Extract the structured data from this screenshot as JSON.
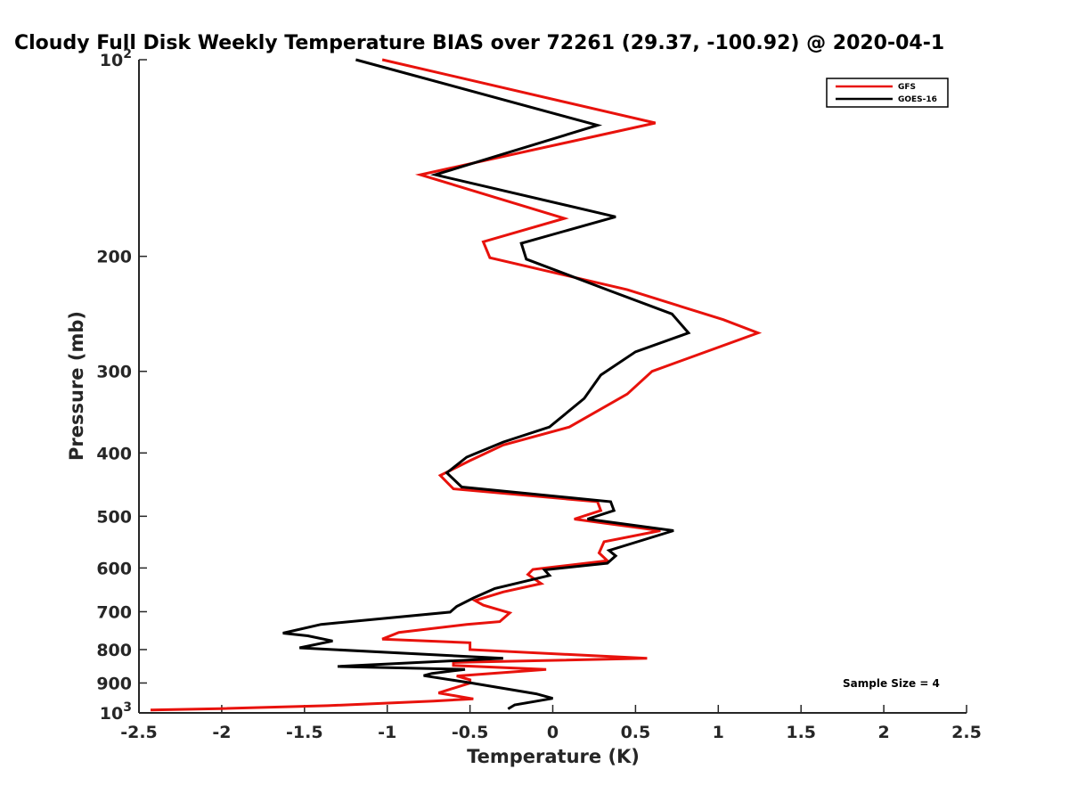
{
  "chart_data": {
    "type": "line",
    "title": "Cloudy Full Disk Weekly Temperature BIAS over 72261 (29.37, -100.92) @ 2020-04-1",
    "xlabel": "Temperature (K)",
    "ylabel": "Pressure (mb)",
    "xlim": [
      -2.5,
      2.5
    ],
    "ylim": [
      100,
      1000
    ],
    "y_scale": "log",
    "y_reversed": true,
    "x_ticks": [
      {
        "value": -2.5,
        "label": "-2.5"
      },
      {
        "value": -2,
        "label": "-2"
      },
      {
        "value": -1.5,
        "label": "-1.5"
      },
      {
        "value": -1,
        "label": "-1"
      },
      {
        "value": -0.5,
        "label": "-0.5"
      },
      {
        "value": 0,
        "label": "0"
      },
      {
        "value": 0.5,
        "label": "0.5"
      },
      {
        "value": 1,
        "label": "1"
      },
      {
        "value": 1.5,
        "label": "1.5"
      },
      {
        "value": 2,
        "label": "2"
      },
      {
        "value": 2.5,
        "label": "2.5"
      }
    ],
    "y_ticks": [
      {
        "value": 100,
        "base": "10",
        "exp": "2"
      },
      {
        "value": 200,
        "label": "200"
      },
      {
        "value": 300,
        "label": "300"
      },
      {
        "value": 400,
        "label": "400"
      },
      {
        "value": 500,
        "label": "500"
      },
      {
        "value": 600,
        "label": "600"
      },
      {
        "value": 700,
        "label": "700"
      },
      {
        "value": 800,
        "label": "800"
      },
      {
        "value": 900,
        "label": "900"
      },
      {
        "value": 1000,
        "base": "10",
        "exp": "3"
      }
    ],
    "grid": false,
    "legend": "top-right",
    "annotation": "Sample Size = 4",
    "series": [
      {
        "name": "GFS",
        "color": "#e8120c",
        "points": [
          [
            -1.03,
            100
          ],
          [
            0.62,
            125
          ],
          [
            -0.8,
            150
          ],
          [
            0.07,
            175
          ],
          [
            -0.42,
            190
          ],
          [
            -0.38,
            201
          ],
          [
            0.45,
            225
          ],
          [
            1.03,
            250
          ],
          [
            1.24,
            262
          ],
          [
            0.6,
            300
          ],
          [
            0.45,
            325
          ],
          [
            0.1,
            365
          ],
          [
            -0.3,
            389
          ],
          [
            -0.5,
            411
          ],
          [
            -0.68,
            433
          ],
          [
            -0.6,
            454
          ],
          [
            0.27,
            475
          ],
          [
            0.29,
            490
          ],
          [
            0.13,
            505
          ],
          [
            0.65,
            526
          ],
          [
            0.31,
            547
          ],
          [
            0.28,
            569
          ],
          [
            0.33,
            585
          ],
          [
            -0.12,
            603
          ],
          [
            -0.15,
            614
          ],
          [
            -0.07,
            634
          ],
          [
            -0.3,
            653
          ],
          [
            -0.47,
            673
          ],
          [
            -0.42,
            684
          ],
          [
            -0.26,
            703
          ],
          [
            -0.32,
            725
          ],
          [
            -0.52,
            732
          ],
          [
            -0.93,
            753
          ],
          [
            -1.03,
            771
          ],
          [
            -0.5,
            781
          ],
          [
            -0.5,
            800
          ],
          [
            0.57,
            825
          ],
          [
            -0.6,
            837
          ],
          [
            -0.6,
            846
          ],
          [
            -0.04,
            858
          ],
          [
            -0.58,
            878
          ],
          [
            -0.5,
            890
          ],
          [
            -0.5,
            900
          ],
          [
            -0.69,
            932
          ],
          [
            -0.48,
            952
          ],
          [
            -0.72,
            959
          ],
          [
            -1.36,
            975
          ],
          [
            -2.01,
            985
          ],
          [
            -2.43,
            990
          ]
        ]
      },
      {
        "name": "GOES-16",
        "color": "#000000",
        "points": [
          [
            -1.19,
            100
          ],
          [
            0.27,
            126
          ],
          [
            -0.71,
            150
          ],
          [
            0.38,
            174
          ],
          [
            -0.19,
            191
          ],
          [
            -0.16,
            202
          ],
          [
            0.35,
            226
          ],
          [
            0.72,
            245
          ],
          [
            0.82,
            262
          ],
          [
            0.5,
            280
          ],
          [
            0.29,
            304
          ],
          [
            0.19,
            330
          ],
          [
            -0.02,
            365
          ],
          [
            -0.3,
            385
          ],
          [
            -0.52,
            406
          ],
          [
            -0.64,
            429
          ],
          [
            -0.55,
            451
          ],
          [
            0.35,
            475
          ],
          [
            0.37,
            490
          ],
          [
            0.21,
            505
          ],
          [
            0.73,
            526
          ],
          [
            0.34,
            564
          ],
          [
            0.38,
            575
          ],
          [
            0.33,
            590
          ],
          [
            -0.05,
            604
          ],
          [
            -0.02,
            616
          ],
          [
            -0.35,
            645
          ],
          [
            -0.48,
            667
          ],
          [
            -0.58,
            687
          ],
          [
            -0.62,
            701
          ],
          [
            -1.4,
            732
          ],
          [
            -1.63,
            755
          ],
          [
            -1.48,
            762
          ],
          [
            -1.33,
            776
          ],
          [
            -1.53,
            795
          ],
          [
            -0.3,
            825
          ],
          [
            -1.3,
            849
          ],
          [
            -0.53,
            858
          ],
          [
            -0.73,
            870
          ],
          [
            -0.78,
            877
          ],
          [
            -0.49,
            900
          ],
          [
            -0.1,
            935
          ],
          [
            0.0,
            950
          ],
          [
            -0.23,
            972
          ],
          [
            -0.27,
            986
          ]
        ]
      }
    ]
  }
}
